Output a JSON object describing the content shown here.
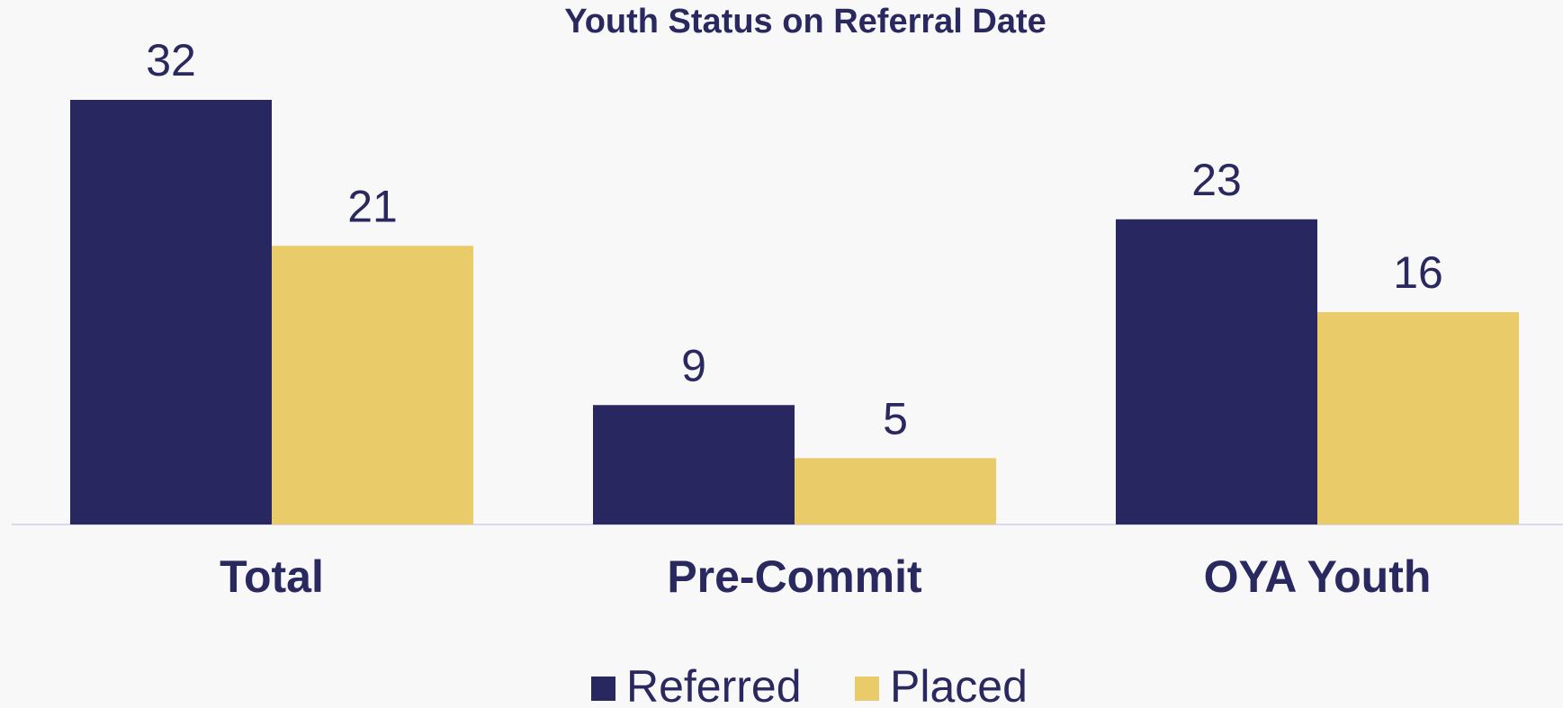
{
  "chart_data": {
    "type": "bar",
    "title": "Youth Status on Referral Date",
    "categories": [
      "Total",
      "Pre-Commit",
      "OYA Youth"
    ],
    "series": [
      {
        "name": "Referred",
        "color": "#29275f",
        "values": [
          32,
          9,
          23
        ]
      },
      {
        "name": "Placed",
        "color": "#eacb6a",
        "values": [
          21,
          5,
          16
        ]
      }
    ],
    "legend": "bottom"
  }
}
